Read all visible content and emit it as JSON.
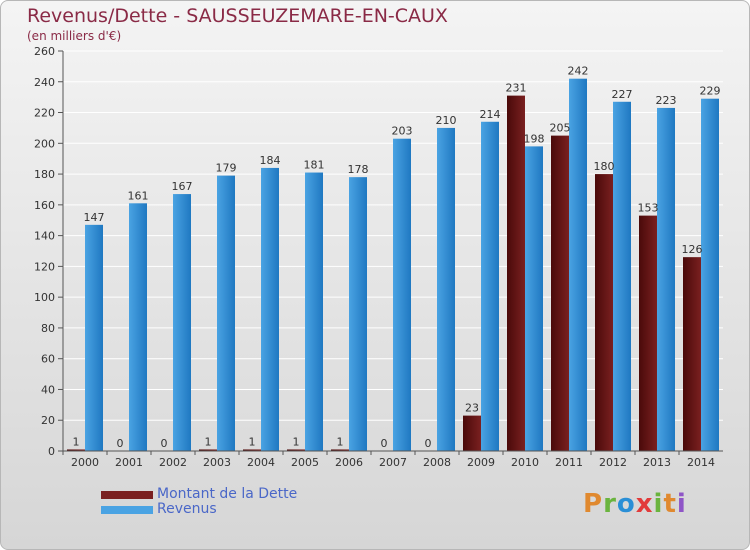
{
  "header": {
    "title": "Revenus/Dette - SAUSSEUZEMARE-EN-CAUX",
    "subtitle": "(en milliers d'€)"
  },
  "legend": {
    "debt_label": "Montant de la Dette",
    "revenue_label": "Revenus"
  },
  "logo": {
    "text": "Proxiti",
    "colors": [
      "#e0892f",
      "#6ab43e",
      "#2a8fd6",
      "#e23b3b",
      "#6ab43e",
      "#e0892f",
      "#8f55c7"
    ]
  },
  "colors": {
    "debt": "#7a2020",
    "debt_dark": "#4a0a0a",
    "revenue": "#4aa3e3",
    "revenue_dark": "#1f78c1",
    "grid": "#ffffff",
    "title": "#8a2a46",
    "legend_text": "#4a67c8"
  },
  "chart_data": {
    "type": "bar",
    "title": "Revenus/Dette - SAUSSEUZEMARE-EN-CAUX",
    "ylabel": "(en milliers d'€)",
    "xlabel": "",
    "ylim": [
      0,
      260
    ],
    "yticks": [
      0,
      20,
      40,
      60,
      80,
      100,
      120,
      140,
      160,
      180,
      200,
      220,
      240,
      260
    ],
    "grid": true,
    "legend_position": "bottom-left",
    "categories": [
      "2000",
      "2001",
      "2002",
      "2003",
      "2004",
      "2005",
      "2006",
      "2007",
      "2008",
      "2009",
      "2010",
      "2011",
      "2012",
      "2013",
      "2014"
    ],
    "series": [
      {
        "name": "Montant de la Dette",
        "values": [
          1,
          0,
          0,
          1,
          1,
          1,
          1,
          0,
          0,
          23,
          231,
          205,
          180,
          153,
          126
        ]
      },
      {
        "name": "Revenus",
        "values": [
          147,
          161,
          167,
          179,
          184,
          181,
          178,
          203,
          210,
          214,
          198,
          242,
          227,
          223,
          229
        ]
      }
    ]
  }
}
